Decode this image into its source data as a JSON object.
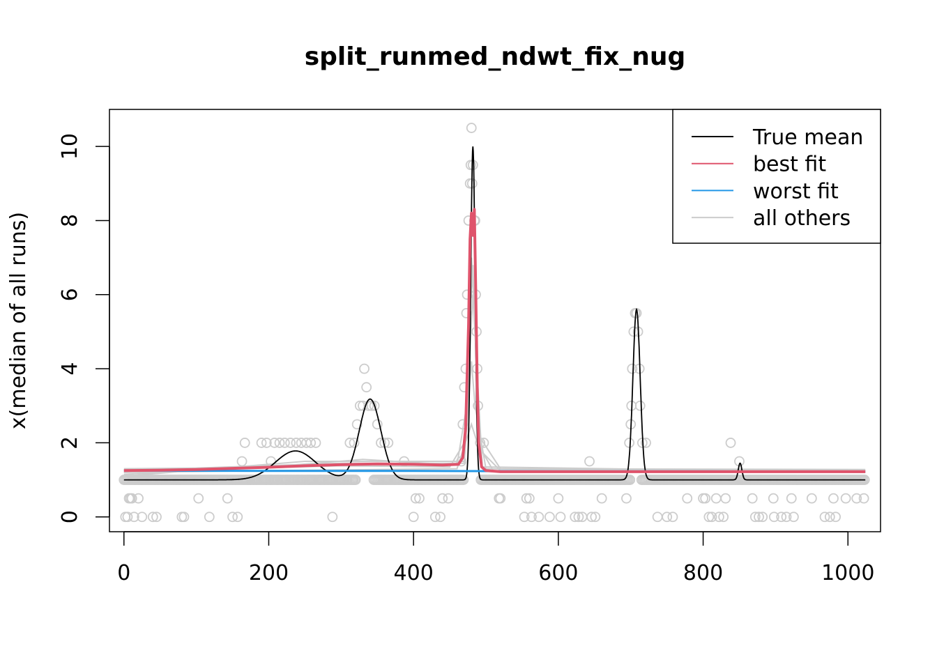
{
  "chart_data": {
    "type": "line",
    "title": "split_runmed_ndwt_fix_nug",
    "xlabel": "",
    "ylabel": "x(median of all runs)",
    "xlim": [
      -20,
      1045
    ],
    "ylim": [
      -0.4,
      11.0
    ],
    "x_ticks": [
      0,
      200,
      400,
      600,
      800,
      1000
    ],
    "y_ticks": [
      0,
      2,
      4,
      6,
      8,
      10
    ],
    "grid": false,
    "legend_position": "top-right",
    "legend": [
      {
        "label": "True mean",
        "color": "#000000"
      },
      {
        "label": "best fit",
        "color": "#DF536B"
      },
      {
        "label": "worst fit",
        "color": "#2297E6"
      },
      {
        "label": "all others",
        "color": "#CCCCCC"
      }
    ],
    "true_mean": {
      "baseline": 1.0,
      "bumps": [
        {
          "center": 237,
          "height": 0.78,
          "sd": 28
        },
        {
          "center": 340,
          "height": 2.18,
          "sd": 15
        },
        {
          "center": 482,
          "height": 9.0,
          "sd": 3
        },
        {
          "center": 708,
          "height": 4.6,
          "sd": 5
        },
        {
          "center": 851,
          "height": 0.45,
          "sd": 2.5
        }
      ]
    },
    "best_fit": {
      "x": [
        0,
        50,
        100,
        150,
        200,
        250,
        300,
        350,
        400,
        440,
        462,
        468,
        472,
        476,
        478,
        480,
        482,
        484,
        486,
        488,
        490,
        494,
        500,
        520,
        600,
        800,
        1000,
        1024
      ],
      "y": [
        1.25,
        1.26,
        1.28,
        1.31,
        1.34,
        1.38,
        1.41,
        1.43,
        1.42,
        1.4,
        1.42,
        1.6,
        2.4,
        5.2,
        7.5,
        8.2,
        7.6,
        8.3,
        6.0,
        3.5,
        2.0,
        1.35,
        1.25,
        1.22,
        1.22,
        1.22,
        1.22,
        1.22
      ]
    },
    "worst_fit": {
      "x": [
        0,
        200,
        400,
        600,
        800,
        1024
      ],
      "y": [
        1.25,
        1.24,
        1.24,
        1.23,
        1.23,
        1.22
      ]
    },
    "others_lines": [
      {
        "x": [
          0,
          150,
          300,
          450,
          470,
          478,
          482,
          486,
          492,
          520,
          800,
          1024
        ],
        "y": [
          1.2,
          1.3,
          1.38,
          1.35,
          2.0,
          5.5,
          6.8,
          4.5,
          1.8,
          1.25,
          1.25,
          1.25
        ]
      },
      {
        "x": [
          0,
          200,
          330,
          460,
          475,
          480,
          484,
          490,
          520,
          1024
        ],
        "y": [
          1.15,
          1.35,
          1.55,
          1.4,
          3.2,
          7.0,
          5.6,
          2.2,
          1.3,
          1.28
        ]
      },
      {
        "x": [
          0,
          250,
          470,
          480,
          485,
          500,
          1024
        ],
        "y": [
          1.1,
          1.5,
          1.5,
          4.2,
          3.0,
          1.3,
          1.2
        ]
      },
      {
        "x": [
          0,
          100,
          300,
          470,
          482,
          495,
          1024
        ],
        "y": [
          1.3,
          1.32,
          1.45,
          1.45,
          6.0,
          1.35,
          1.2
        ]
      },
      {
        "x": [
          0,
          200,
          460,
          480,
          488,
          510,
          1024
        ],
        "y": [
          1.2,
          1.25,
          1.3,
          2.5,
          2.0,
          1.25,
          1.25
        ]
      }
    ],
    "observed_points": {
      "dense_rows": [
        {
          "y": 1.0,
          "segments": [
            [
              0,
              175
            ],
            [
              345,
              470
            ],
            [
              493,
              700
            ],
            [
              715,
              1024
            ]
          ]
        },
        {
          "y": 1.0,
          "segments": [
            [
              175,
              320
            ]
          ]
        }
      ],
      "scatter": [
        [
          2,
          0
        ],
        [
          5,
          0
        ],
        [
          7,
          0.5
        ],
        [
          9,
          0.5
        ],
        [
          11,
          0.5
        ],
        [
          14,
          0
        ],
        [
          20,
          0.5
        ],
        [
          25,
          0
        ],
        [
          40,
          0
        ],
        [
          45,
          0
        ],
        [
          80,
          0
        ],
        [
          83,
          0
        ],
        [
          103,
          0.5
        ],
        [
          118,
          0
        ],
        [
          143,
          0.5
        ],
        [
          150,
          0
        ],
        [
          157,
          0
        ],
        [
          163,
          1.5
        ],
        [
          167,
          2.0
        ],
        [
          190,
          2.0
        ],
        [
          197,
          2.0
        ],
        [
          203,
          1.5
        ],
        [
          208,
          2.0
        ],
        [
          215,
          2.0
        ],
        [
          222,
          2.0
        ],
        [
          230,
          2.0
        ],
        [
          238,
          2.0
        ],
        [
          245,
          2.0
        ],
        [
          252,
          2.0
        ],
        [
          258,
          2.0
        ],
        [
          265,
          2.0
        ],
        [
          203,
          1.0
        ],
        [
          212,
          1.0
        ],
        [
          225,
          1.0
        ],
        [
          240,
          1.0
        ],
        [
          255,
          1.0
        ],
        [
          270,
          1.0
        ],
        [
          288,
          0
        ],
        [
          312,
          2.0
        ],
        [
          318,
          2.0
        ],
        [
          322,
          2.5
        ],
        [
          326,
          3.0
        ],
        [
          330,
          3.0
        ],
        [
          332,
          4.0
        ],
        [
          335,
          3.5
        ],
        [
          338,
          3.0
        ],
        [
          342,
          3.0
        ],
        [
          346,
          3.0
        ],
        [
          350,
          2.5
        ],
        [
          355,
          2.0
        ],
        [
          360,
          2.0
        ],
        [
          365,
          2.0
        ],
        [
          316,
          1.0
        ],
        [
          320,
          1.0
        ],
        [
          387,
          1.5
        ],
        [
          400,
          0
        ],
        [
          403,
          0.5
        ],
        [
          408,
          0.5
        ],
        [
          430,
          0
        ],
        [
          437,
          0
        ],
        [
          440,
          0.5
        ],
        [
          448,
          0.5
        ],
        [
          466,
          1.5
        ],
        [
          468,
          2.5
        ],
        [
          470,
          3.5
        ],
        [
          472,
          4.0
        ],
        [
          473,
          5.5
        ],
        [
          474,
          6.0
        ],
        [
          476,
          8.0
        ],
        [
          478,
          9.0
        ],
        [
          479,
          9.5
        ],
        [
          480,
          10.5
        ],
        [
          481,
          9.0
        ],
        [
          482,
          9.5
        ],
        [
          484,
          8.0
        ],
        [
          485,
          8.0
        ],
        [
          486,
          6.0
        ],
        [
          487,
          5.0
        ],
        [
          488,
          4.0
        ],
        [
          489,
          3.0
        ],
        [
          492,
          2.0
        ],
        [
          497,
          2.0
        ],
        [
          518,
          0.5
        ],
        [
          520,
          0.5
        ],
        [
          553,
          0
        ],
        [
          556,
          0.5
        ],
        [
          560,
          0.5
        ],
        [
          563,
          0
        ],
        [
          573,
          0
        ],
        [
          588,
          0
        ],
        [
          600,
          0.5
        ],
        [
          603,
          0
        ],
        [
          623,
          0
        ],
        [
          628,
          0
        ],
        [
          633,
          0
        ],
        [
          643,
          1.5
        ],
        [
          646,
          0
        ],
        [
          651,
          0
        ],
        [
          660,
          0.5
        ],
        [
          694,
          0.5
        ],
        [
          698,
          2.0
        ],
        [
          700,
          2.5
        ],
        [
          701,
          3.0
        ],
        [
          702,
          4.0
        ],
        [
          704,
          5.0
        ],
        [
          706,
          5.5
        ],
        [
          708,
          5.5
        ],
        [
          710,
          5.0
        ],
        [
          712,
          4.0
        ],
        [
          713,
          3.0
        ],
        [
          716,
          2.0
        ],
        [
          721,
          2.0
        ],
        [
          737,
          0
        ],
        [
          750,
          0
        ],
        [
          758,
          0
        ],
        [
          778,
          0.5
        ],
        [
          800,
          0.5
        ],
        [
          803,
          0.5
        ],
        [
          808,
          0
        ],
        [
          812,
          0
        ],
        [
          818,
          0.5
        ],
        [
          822,
          0
        ],
        [
          828,
          0
        ],
        [
          831,
          0.5
        ],
        [
          838,
          2.0
        ],
        [
          850,
          1.5
        ],
        [
          868,
          0.5
        ],
        [
          872,
          0
        ],
        [
          877,
          0
        ],
        [
          882,
          0
        ],
        [
          897,
          0.5
        ],
        [
          898,
          0
        ],
        [
          908,
          0
        ],
        [
          915,
          0
        ],
        [
          922,
          0.5
        ],
        [
          925,
          0
        ],
        [
          950,
          0.5
        ],
        [
          968,
          0
        ],
        [
          975,
          0
        ],
        [
          980,
          0.5
        ],
        [
          983,
          0
        ],
        [
          997,
          0.5
        ],
        [
          1012,
          0.5
        ],
        [
          1022,
          0.5
        ]
      ]
    }
  }
}
